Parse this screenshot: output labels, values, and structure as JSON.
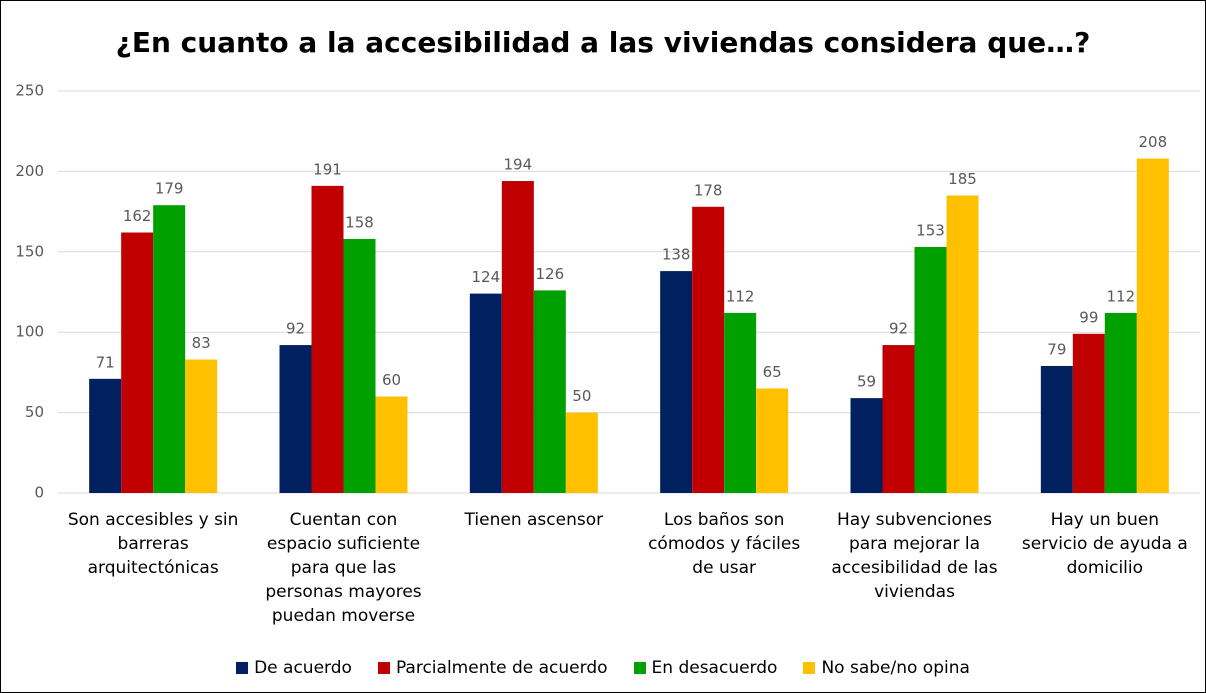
{
  "chart_data": {
    "type": "bar",
    "title": "¿En cuanto a la accesibilidad a las viviendas considera que…?",
    "categories": [
      "Son accesibles y sin barreras arquitectónicas",
      "Cuentan con espacio suficiente para que las personas mayores puedan moverse",
      "Tienen ascensor",
      "Los baños son cómodos y fáciles de usar",
      "Hay subvenciones para mejorar la accesibilidad de las viviendas",
      "Hay un buen servicio de ayuda a domicilio"
    ],
    "series": [
      {
        "name": "De acuerdo",
        "color": "#002060",
        "values": [
          71,
          92,
          124,
          138,
          59,
          79
        ]
      },
      {
        "name": "Parcialmente de acuerdo",
        "color": "#c00000",
        "values": [
          162,
          191,
          194,
          178,
          92,
          99
        ]
      },
      {
        "name": "En desacuerdo",
        "color": "#00a000",
        "values": [
          179,
          158,
          126,
          112,
          153,
          112
        ]
      },
      {
        "name": "No sabe/no opina",
        "color": "#ffc000",
        "values": [
          83,
          60,
          50,
          65,
          185,
          208
        ]
      }
    ],
    "ylim": [
      0,
      250
    ],
    "yticks": [
      0,
      50,
      100,
      150,
      200,
      250
    ],
    "grid": true,
    "legend": "bottom"
  }
}
